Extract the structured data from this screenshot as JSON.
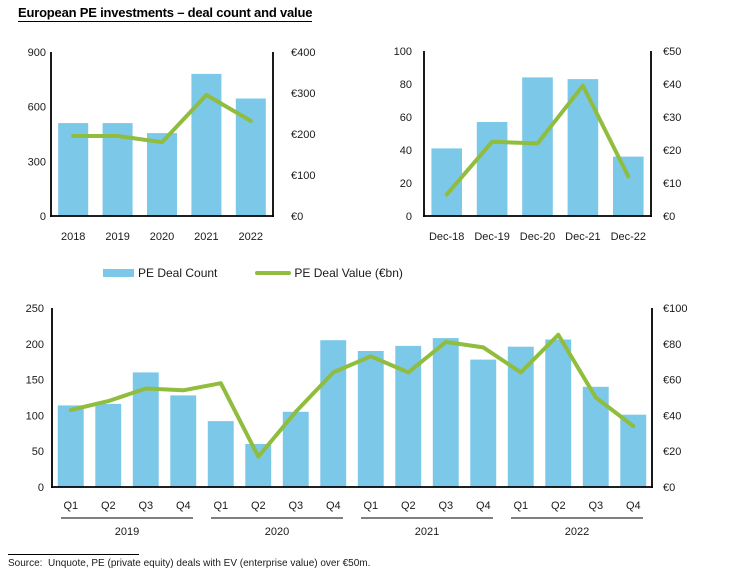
{
  "title": "European PE investments – deal count and value",
  "legend": {
    "count_label": "PE Deal Count",
    "value_label": "PE Deal Value (€bn)"
  },
  "source_note": "Source:  Unquote, PE (private equity) deals with EV (enterprise value) over €50m.",
  "colors": {
    "bar": "#7BC8E8",
    "line": "#90BD3D",
    "axis": "#000000",
    "text": "#1A1A1A"
  },
  "chart_data": [
    {
      "id": "annual-deals",
      "type": "bar",
      "subtype": "bar+line combo, dual axis",
      "categories": [
        "2018",
        "2019",
        "2020",
        "2021",
        "2022"
      ],
      "series": [
        {
          "name": "PE Deal Count",
          "type": "bar",
          "axis": "left",
          "values": [
            510,
            510,
            455,
            780,
            645
          ]
        },
        {
          "name": "PE Deal Value (€bn)",
          "type": "line",
          "axis": "right",
          "values": [
            195,
            195,
            180,
            295,
            232
          ]
        }
      ],
      "left_axis": {
        "min": 0,
        "max": 900,
        "tick_labels": [
          "0",
          "300",
          "600",
          "900"
        ]
      },
      "right_axis": {
        "min": 0,
        "max": 400,
        "tick_labels": [
          "€0",
          "€100",
          "€200",
          "€300",
          "€400"
        ]
      },
      "grid": false,
      "legend_position": "below-shared"
    },
    {
      "id": "ltm-deals",
      "type": "bar",
      "subtype": "bar+line combo, dual axis",
      "categories": [
        "Dec-18",
        "Dec-19",
        "Dec-20",
        "Dec-21",
        "Dec-22"
      ],
      "series": [
        {
          "name": "PE Deal Count",
          "type": "bar",
          "axis": "left",
          "values": [
            41,
            57,
            84,
            83,
            36
          ]
        },
        {
          "name": "PE Deal Value (€bn)",
          "type": "line",
          "axis": "right",
          "values": [
            6.5,
            22.5,
            22,
            39.5,
            12
          ]
        }
      ],
      "left_axis": {
        "min": 0,
        "max": 100,
        "tick_labels": [
          "0",
          "20",
          "40",
          "60",
          "80",
          "100"
        ]
      },
      "right_axis": {
        "min": 0,
        "max": 50,
        "tick_labels": [
          "€0",
          "€10",
          "€20",
          "€30",
          "€40",
          "€50"
        ]
      },
      "grid": false,
      "legend_position": "below-shared"
    },
    {
      "id": "quarterly-deals",
      "type": "bar",
      "subtype": "bar+line combo, dual axis, grouped quarters",
      "categories": [
        "Q1",
        "Q2",
        "Q3",
        "Q4",
        "Q1",
        "Q2",
        "Q3",
        "Q4",
        "Q1",
        "Q2",
        "Q3",
        "Q4",
        "Q1",
        "Q2",
        "Q3",
        "Q4"
      ],
      "groups": [
        {
          "label": "2019",
          "span": 4
        },
        {
          "label": "2020",
          "span": 4
        },
        {
          "label": "2021",
          "span": 4
        },
        {
          "label": "2022",
          "span": 4
        }
      ],
      "series": [
        {
          "name": "PE Deal Count",
          "type": "bar",
          "axis": "left",
          "values": [
            114,
            116,
            160,
            128,
            92,
            60,
            105,
            205,
            190,
            197,
            208,
            178,
            196,
            206,
            140,
            101
          ]
        },
        {
          "name": "PE Deal Value (€bn)",
          "type": "line",
          "axis": "right",
          "values": [
            43,
            48,
            55,
            54,
            58,
            17,
            42,
            64,
            73,
            64,
            81,
            78,
            64,
            85,
            50,
            34
          ]
        }
      ],
      "left_axis": {
        "min": 0,
        "max": 250,
        "tick_labels": [
          "0",
          "50",
          "100",
          "150",
          "200",
          "250"
        ]
      },
      "right_axis": {
        "min": 0,
        "max": 100,
        "tick_labels": [
          "€0",
          "€20",
          "€40",
          "€60",
          "€80",
          "€100"
        ]
      },
      "grid": false,
      "legend_position": "above-shared"
    }
  ]
}
